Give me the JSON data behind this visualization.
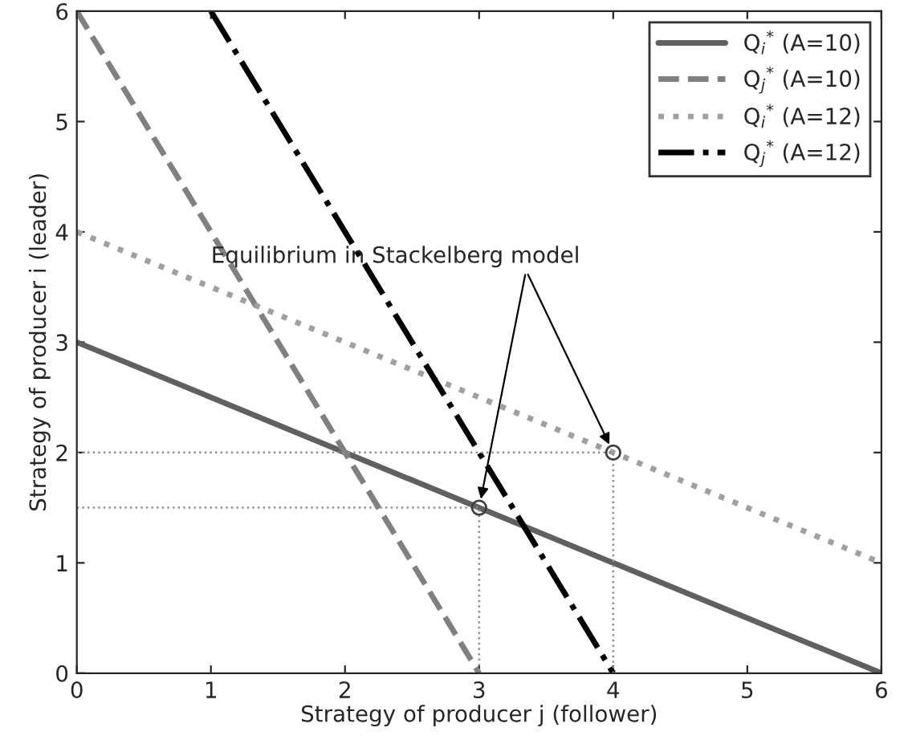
{
  "chart_data": {
    "type": "line",
    "xlabel": "Strategy of producer j (follower)",
    "ylabel": "Strategy of producer i (leader)",
    "xlim": [
      0,
      6
    ],
    "ylim": [
      0,
      6
    ],
    "xticks": [
      0,
      1,
      2,
      3,
      4,
      5,
      6
    ],
    "yticks": [
      0,
      1,
      2,
      3,
      4,
      5,
      6
    ],
    "legend": "top right",
    "grid": false,
    "series": [
      {
        "name": "Q$_{i}$$^{*}$ (A=10)",
        "color": "#606060",
        "x": [
          0,
          6
        ],
        "values": [
          3,
          0
        ],
        "line_style": "solid"
      },
      {
        "name": "Q$_{j}$$^{*}$ (A=10)",
        "color": "#808080",
        "x": [
          0,
          3
        ],
        "values": [
          6,
          0
        ],
        "line_style": "dashed"
      },
      {
        "name": "Q$_{i}$$^{*}$ (A=12)",
        "color": "#a0a0a0",
        "x": [
          0,
          6
        ],
        "values": [
          4,
          1
        ],
        "line_style": "dotted"
      },
      {
        "name": "Q$_{j}$$^{*}$ (A=12)",
        "color": "#000000",
        "x": [
          1,
          4
        ],
        "values": [
          6,
          0
        ],
        "line_style": "dashdot"
      },
      {
        "color": "#909090",
        "x": [
          0,
          3,
          3
        ],
        "values": [
          1.5,
          1.5,
          0
        ],
        "line_style": "dotted"
      },
      {
        "color": "#909090",
        "x": [
          0,
          4,
          4
        ],
        "values": [
          2,
          2,
          0
        ],
        "line_style": "dotted"
      },
      {
        "type": "scatter",
        "color": "#404040",
        "x": [
          3,
          4
        ],
        "values": [
          1.5,
          2
        ],
        "marker": "circle"
      }
    ],
    "annotations": [
      {
        "text": "Equilibrium in Stackelberg model",
        "x": 3,
        "y": 1.5
      }
    ]
  }
}
